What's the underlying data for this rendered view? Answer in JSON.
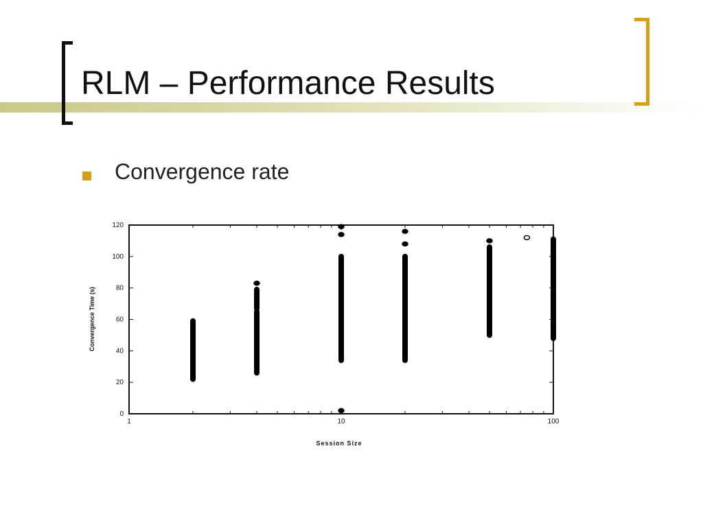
{
  "slide": {
    "title": "RLM – Performance Results",
    "bullet": "Convergence rate"
  },
  "colors": {
    "bracket_left": "#111111",
    "bracket_right": "#d4a017",
    "bullet_marker": "#d4a017",
    "title_band": "#c9c98a"
  },
  "chart_data": {
    "type": "scatter",
    "xlabel": "Session Size",
    "ylabel": "Convergence Time (s)",
    "xscale": "log",
    "xlim": [
      1,
      100
    ],
    "ylim": [
      0,
      120
    ],
    "x_ticks": [
      {
        "value": 1,
        "label": "1"
      },
      {
        "value": 10,
        "label": "10"
      },
      {
        "value": 100,
        "label": "100"
      }
    ],
    "y_ticks": [
      {
        "value": 0,
        "label": "0"
      },
      {
        "value": 20,
        "label": "20"
      },
      {
        "value": 40,
        "label": "40"
      },
      {
        "value": 60,
        "label": "60"
      },
      {
        "value": 80,
        "label": "80"
      },
      {
        "value": 100,
        "label": "100"
      },
      {
        "value": 120,
        "label": "120"
      }
    ],
    "grid": false,
    "legend": "none",
    "series": [
      {
        "points": [
          {
            "x": 2,
            "ymin": 22,
            "ymax": 59
          },
          {
            "x": 4,
            "ymin": 26,
            "ymax": 65
          },
          {
            "x": 4,
            "ymin": 67,
            "ymax": 79
          },
          {
            "x": 4,
            "y": 83
          },
          {
            "x": 10,
            "ymin": 34,
            "ymax": 100
          },
          {
            "x": 10,
            "y": 114
          },
          {
            "x": 10,
            "y": 119
          },
          {
            "x": 10,
            "y": 2
          },
          {
            "x": 20,
            "ymin": 34,
            "ymax": 100
          },
          {
            "x": 20,
            "y": 108
          },
          {
            "x": 20,
            "y": 116
          },
          {
            "x": 50,
            "ymin": 50,
            "ymax": 106
          },
          {
            "x": 50,
            "y": 110
          },
          {
            "x": 75,
            "y": 112
          },
          {
            "x": 100,
            "ymin": 48,
            "ymax": 111
          }
        ]
      }
    ]
  }
}
